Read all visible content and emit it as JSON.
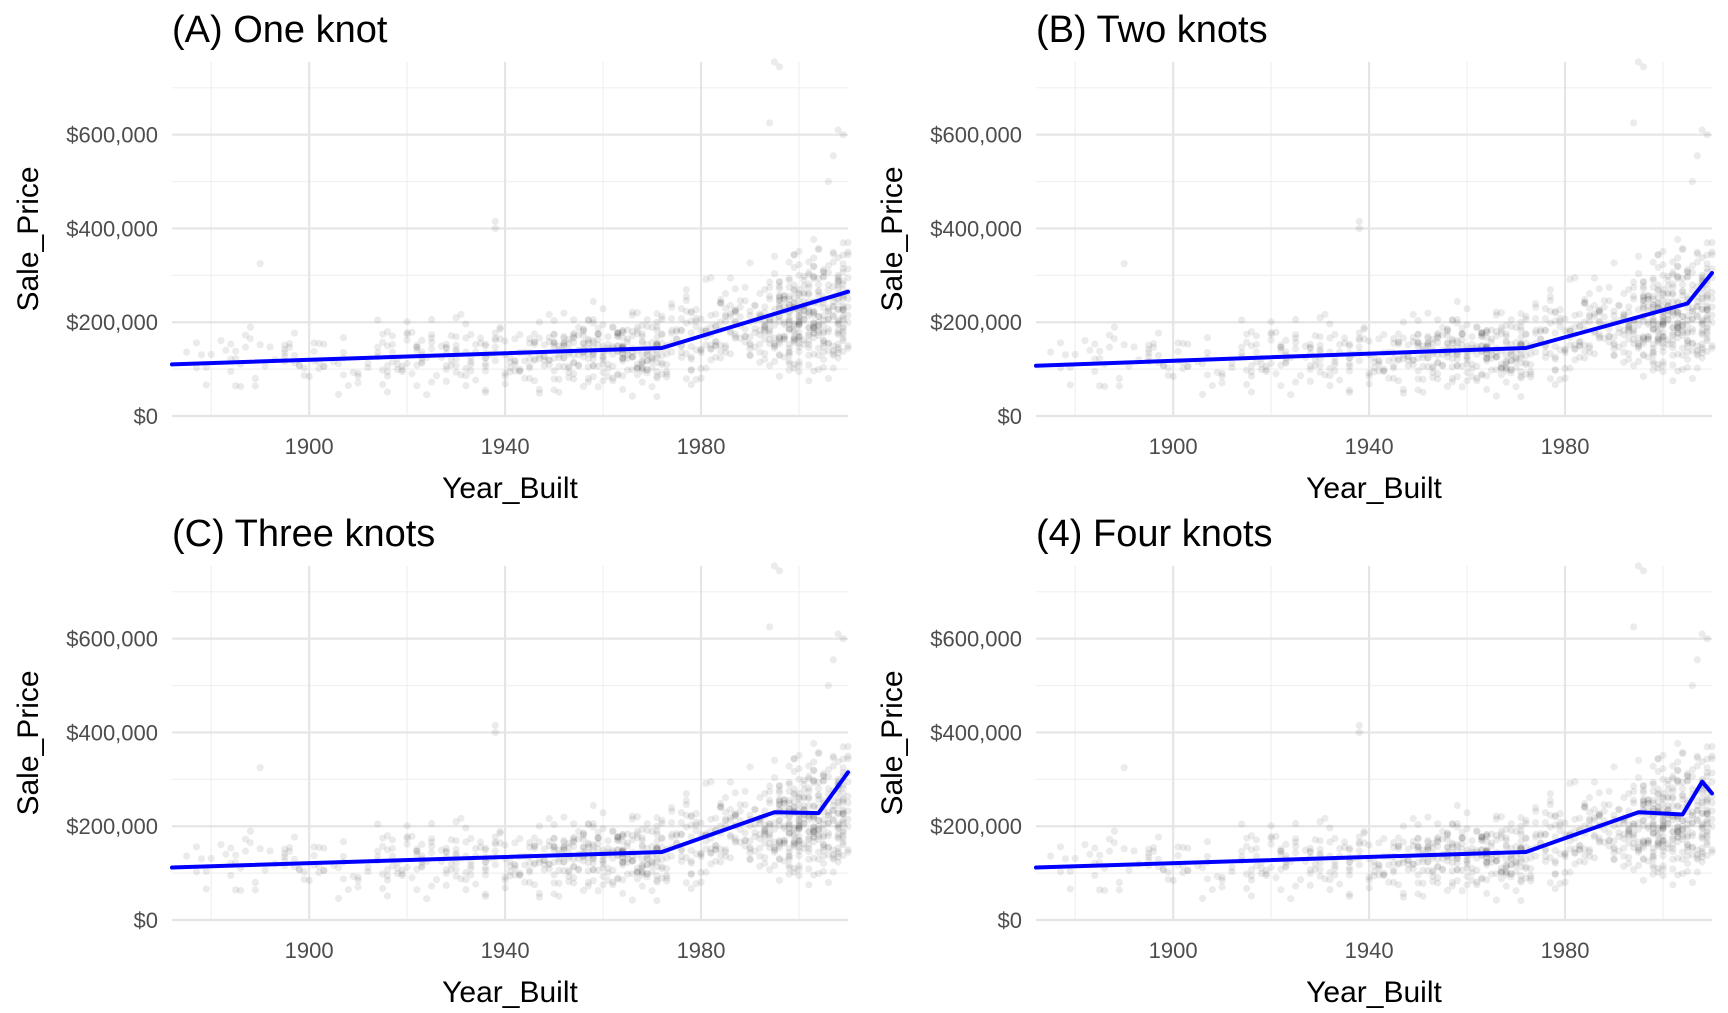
{
  "chart_data": [
    {
      "type": "scatter",
      "title": "(A) One knot",
      "xlabel": "Year_Built",
      "ylabel": "Sale_Price",
      "xlim": [
        1872,
        2010
      ],
      "ylim": [
        0,
        755000
      ],
      "xticks": [
        1900,
        1940,
        1980
      ],
      "yticks": [
        0,
        200000,
        400000,
        600000
      ],
      "ytick_labels": [
        "$0",
        "$200,000",
        "$400,000",
        "$600,000"
      ],
      "grid": true,
      "points": "Sale_Price vs Year_Built scatter, semi-transparent black",
      "fit_line": {
        "color": "#0000ff",
        "x": [
          1872,
          1972,
          2010
        ],
        "y": [
          110000,
          145000,
          265000
        ]
      }
    },
    {
      "type": "scatter",
      "title": "(B) Two knots",
      "xlabel": "Year_Built",
      "ylabel": "Sale_Price",
      "xlim": [
        1872,
        2010
      ],
      "ylim": [
        0,
        755000
      ],
      "xticks": [
        1900,
        1940,
        1980
      ],
      "yticks": [
        0,
        200000,
        400000,
        600000
      ],
      "ytick_labels": [
        "$0",
        "$200,000",
        "$400,000",
        "$600,000"
      ],
      "grid": true,
      "fit_line": {
        "color": "#0000ff",
        "x": [
          1872,
          1972,
          2005,
          2010
        ],
        "y": [
          107000,
          145000,
          240000,
          305000
        ]
      }
    },
    {
      "type": "scatter",
      "title": "(C) Three knots",
      "xlabel": "Year_Built",
      "ylabel": "Sale_Price",
      "xlim": [
        1872,
        2010
      ],
      "ylim": [
        0,
        755000
      ],
      "xticks": [
        1900,
        1940,
        1980
      ],
      "yticks": [
        0,
        200000,
        400000,
        600000
      ],
      "ytick_labels": [
        "$0",
        "$200,000",
        "$400,000",
        "$600,000"
      ],
      "grid": true,
      "fit_line": {
        "color": "#0000ff",
        "x": [
          1872,
          1972,
          1995,
          2004,
          2010
        ],
        "y": [
          112000,
          145000,
          230000,
          228000,
          315000
        ]
      }
    },
    {
      "type": "scatter",
      "title": "(4) Four knots",
      "xlabel": "Year_Built",
      "ylabel": "Sale_Price",
      "xlim": [
        1872,
        2010
      ],
      "ylim": [
        0,
        755000
      ],
      "xticks": [
        1900,
        1940,
        1980
      ],
      "yticks": [
        0,
        200000,
        400000,
        600000
      ],
      "ytick_labels": [
        "$0",
        "$200,000",
        "$400,000",
        "$600,000"
      ],
      "grid": true,
      "fit_line": {
        "color": "#0000ff",
        "x": [
          1872,
          1972,
          1995,
          2004,
          2008,
          2010
        ],
        "y": [
          112000,
          145000,
          230000,
          225000,
          295000,
          270000
        ]
      }
    }
  ]
}
